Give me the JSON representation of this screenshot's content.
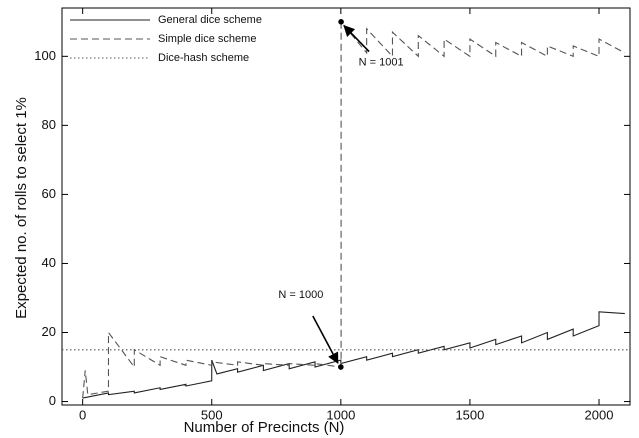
{
  "chart_data": {
    "type": "line",
    "xlabel": "Number of Precincts (N)",
    "ylabel": "Expected no. of rolls to select 1%",
    "xlim": [
      -80,
      2120
    ],
    "ylim": [
      -1,
      114
    ],
    "xticks": [
      0,
      500,
      1000,
      1500,
      2000
    ],
    "yticks": [
      0,
      20,
      40,
      60,
      80,
      100
    ],
    "legend": "upper left",
    "series": [
      {
        "name": "General dice scheme",
        "color": "#222222",
        "style": "solid",
        "x": [
          0,
          100,
          100,
          200,
          200,
          300,
          300,
          400,
          400,
          500,
          500,
          520,
          600,
          600,
          700,
          700,
          800,
          800,
          900,
          900,
          1000,
          1000,
          1100,
          1100,
          1200,
          1200,
          1300,
          1300,
          1400,
          1400,
          1500,
          1500,
          1600,
          1600,
          1700,
          1700,
          1800,
          1800,
          1900,
          1900,
          2000,
          2000,
          2100
        ],
        "values": [
          1,
          2.5,
          2,
          3,
          2.5,
          4,
          3.5,
          5,
          4.5,
          6,
          12,
          8,
          9.5,
          8.5,
          10.5,
          9,
          11,
          9.5,
          11.5,
          10,
          12,
          11,
          13,
          12,
          14,
          13,
          15,
          14,
          16,
          15,
          17,
          15.5,
          18,
          16.5,
          19,
          17,
          20,
          18,
          21,
          19,
          22,
          26,
          25.5
        ]
      },
      {
        "name": "Simple dice scheme",
        "color": "#555555",
        "style": "dashed",
        "x": [
          0,
          10,
          20,
          100,
          100,
          200,
          200,
          300,
          300,
          400,
          400,
          500,
          500,
          600,
          600,
          700,
          700,
          800,
          800,
          900,
          900,
          1000,
          1001,
          1001,
          1100,
          1100,
          1200,
          1200,
          1300,
          1300,
          1400,
          1400,
          1500,
          1500,
          1600,
          1600,
          1700,
          1700,
          1800,
          1800,
          1900,
          1900,
          2000,
          2000,
          2100
        ],
        "values": [
          1,
          9,
          2,
          3,
          20,
          10,
          15,
          10.5,
          13,
          10.5,
          12,
          10.5,
          11.5,
          10.5,
          11.5,
          10.5,
          11,
          10.5,
          11,
          10.5,
          11,
          10,
          10,
          110,
          101,
          108,
          100,
          107,
          100,
          106,
          100,
          105,
          100,
          105,
          100,
          104,
          100,
          104,
          100,
          103,
          100,
          103,
          100,
          105,
          101
        ]
      },
      {
        "name": "Dice-hash scheme",
        "color": "#555555",
        "style": "dotted",
        "x": [
          -80,
          2120
        ],
        "values": [
          15,
          15
        ]
      }
    ],
    "annotations": [
      {
        "text": "N = 1000",
        "x": 1000,
        "y": 10
      },
      {
        "text": "N = 1001",
        "x": 1001,
        "y": 110
      }
    ]
  }
}
